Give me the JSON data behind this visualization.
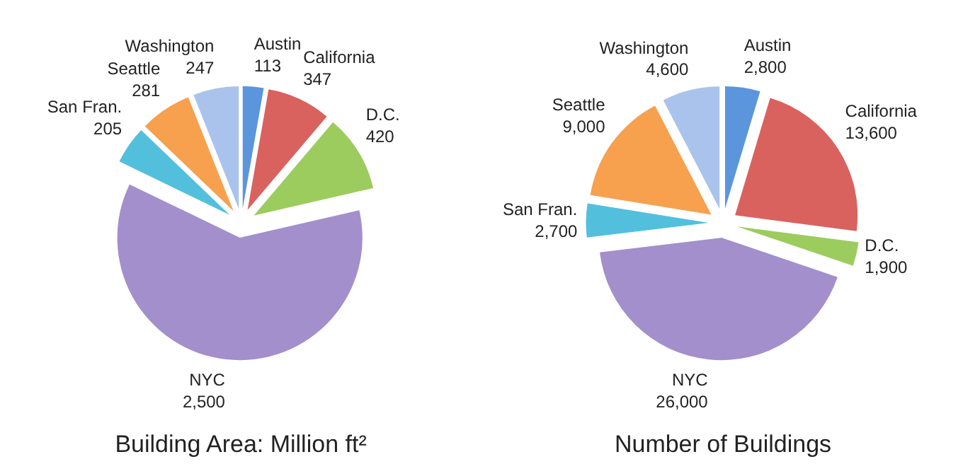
{
  "chart_data": [
    {
      "type": "pie",
      "title": "Building Area: Million ft²",
      "categories": [
        "Austin",
        "California",
        "D.C.",
        "NYC",
        "San Fran.",
        "Seattle",
        "Washington"
      ],
      "values": [
        113,
        347,
        420,
        2500,
        205,
        281,
        247
      ],
      "value_labels": [
        "113",
        "347",
        "420",
        "2,500",
        "205",
        "281",
        "247"
      ],
      "colors": [
        "#5b95dc",
        "#d9625e",
        "#9ccc5e",
        "#a28fcb",
        "#52c0dc",
        "#f7a04e",
        "#a9c3ec"
      ]
    },
    {
      "type": "pie",
      "title": "Number of Buildings",
      "categories": [
        "Austin",
        "California",
        "D.C.",
        "NYC",
        "San Fran.",
        "Seattle",
        "Washington"
      ],
      "values": [
        2800,
        13600,
        1900,
        26000,
        2700,
        9000,
        4600
      ],
      "value_labels": [
        "2,800",
        "13,600",
        "1,900",
        "26,000",
        "2,700",
        "9,000",
        "4,600"
      ],
      "colors": [
        "#5b95dc",
        "#d9625e",
        "#9ccc5e",
        "#a28fcb",
        "#52c0dc",
        "#f7a04e",
        "#a9c3ec"
      ]
    }
  ]
}
